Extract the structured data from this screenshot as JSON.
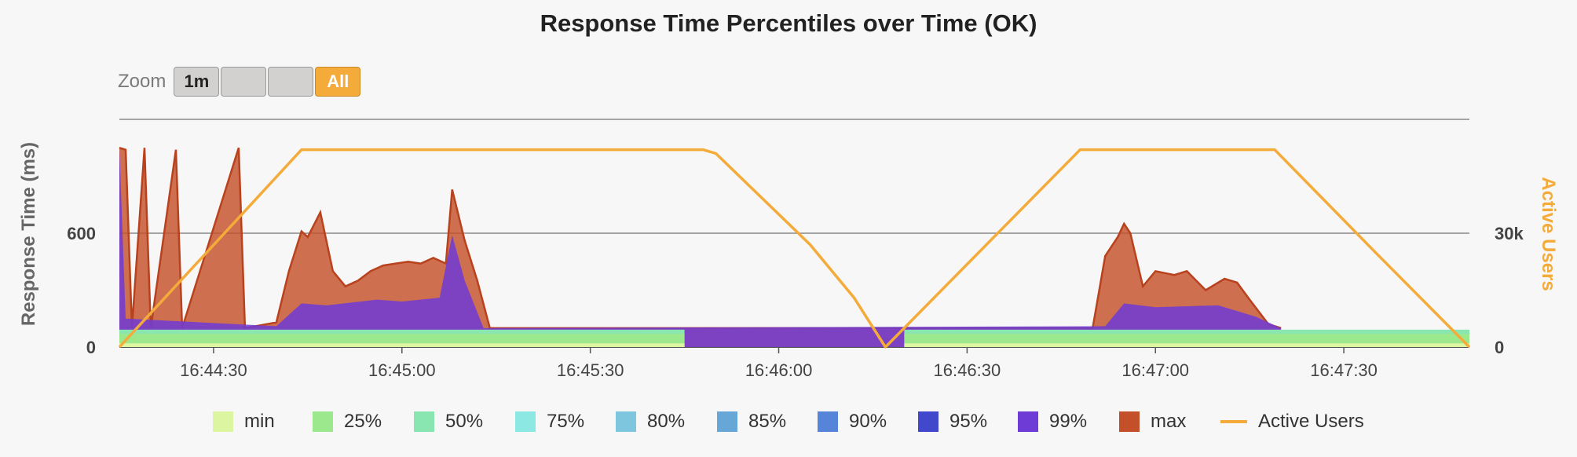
{
  "chart_data": {
    "type": "area",
    "title": "Response Time Percentiles over Time (OK)",
    "ylabel": "Response Time (ms)",
    "y2label": "Active Users",
    "yticks": [
      0,
      600
    ],
    "y2ticks": [
      "0",
      "30k"
    ],
    "ylim": [
      0,
      1200
    ],
    "y2lim": [
      0,
      60000
    ],
    "x_ticks": [
      "16:44:30",
      "16:45:00",
      "16:45:30",
      "16:46:00",
      "16:46:30",
      "16:47:00",
      "16:47:30"
    ],
    "legend_position": "bottom",
    "series": [
      {
        "name": "min",
        "color": "#dcf5a0"
      },
      {
        "name": "25%",
        "color": "#9ce98d"
      },
      {
        "name": "50%",
        "color": "#89e6b0"
      },
      {
        "name": "75%",
        "color": "#8ce8e3"
      },
      {
        "name": "80%",
        "color": "#7dc6dd"
      },
      {
        "name": "85%",
        "color": "#67a7d7"
      },
      {
        "name": "90%",
        "color": "#5584d8"
      },
      {
        "name": "95%",
        "color": "#4148cc"
      },
      {
        "name": "99%",
        "color": "#6f3bd6"
      },
      {
        "name": "max",
        "color": "#c4502a"
      },
      {
        "name": "Active Users",
        "color": "#f4ab3a"
      }
    ],
    "max_curve": [
      [
        "16:44:15",
        1050
      ],
      [
        "16:44:16",
        1040
      ],
      [
        "16:44:17",
        100
      ],
      [
        "16:44:19",
        1050
      ],
      [
        "16:44:20",
        100
      ],
      [
        "16:44:24",
        1040
      ],
      [
        "16:44:25",
        100
      ],
      [
        "16:44:34",
        1050
      ],
      [
        "16:44:35",
        100
      ],
      [
        "16:44:40",
        130
      ],
      [
        "16:44:42",
        400
      ],
      [
        "16:44:44",
        610
      ],
      [
        "16:44:45",
        580
      ],
      [
        "16:44:47",
        710
      ],
      [
        "16:44:49",
        400
      ],
      [
        "16:44:51",
        320
      ],
      [
        "16:44:53",
        350
      ],
      [
        "16:44:55",
        400
      ],
      [
        "16:44:57",
        430
      ],
      [
        "16:44:59",
        440
      ],
      [
        "16:45:01",
        450
      ],
      [
        "16:45:03",
        440
      ],
      [
        "16:45:05",
        470
      ],
      [
        "16:45:07",
        440
      ],
      [
        "16:45:08",
        830
      ],
      [
        "16:45:10",
        560
      ],
      [
        "16:45:12",
        350
      ],
      [
        "16:45:14",
        100
      ],
      [
        "16:45:20",
        100
      ],
      [
        "16:46:50",
        100
      ],
      [
        "16:46:52",
        480
      ],
      [
        "16:46:54",
        580
      ],
      [
        "16:46:55",
        650
      ],
      [
        "16:46:56",
        600
      ],
      [
        "16:46:58",
        320
      ],
      [
        "16:47:00",
        400
      ],
      [
        "16:47:03",
        380
      ],
      [
        "16:47:05",
        400
      ],
      [
        "16:47:08",
        300
      ],
      [
        "16:47:11",
        360
      ],
      [
        "16:47:13",
        340
      ],
      [
        "16:47:15",
        250
      ],
      [
        "16:47:18",
        120
      ],
      [
        "16:47:20",
        100
      ]
    ],
    "p99_curve": [
      [
        "16:44:15",
        1050
      ],
      [
        "16:44:16",
        150
      ],
      [
        "16:44:40",
        110
      ],
      [
        "16:44:44",
        230
      ],
      [
        "16:44:48",
        220
      ],
      [
        "16:44:56",
        250
      ],
      [
        "16:45:00",
        240
      ],
      [
        "16:45:06",
        260
      ],
      [
        "16:45:08",
        590
      ],
      [
        "16:45:10",
        350
      ],
      [
        "16:45:13",
        100
      ],
      [
        "16:46:52",
        110
      ],
      [
        "16:46:55",
        230
      ],
      [
        "16:47:00",
        210
      ],
      [
        "16:47:10",
        220
      ],
      [
        "16:47:16",
        160
      ],
      [
        "16:47:20",
        100
      ]
    ],
    "active_users": [
      [
        "16:44:15",
        0
      ],
      [
        "16:44:44",
        52000
      ],
      [
        "16:45:48",
        52000
      ],
      [
        "16:45:50",
        51000
      ],
      [
        "16:46:05",
        27000
      ],
      [
        "16:46:12",
        13000
      ],
      [
        "16:46:17",
        0
      ],
      [
        "16:46:48",
        52000
      ],
      [
        "16:47:19",
        52000
      ],
      [
        "16:47:35",
        25000
      ],
      [
        "16:47:50",
        0
      ]
    ]
  },
  "zoom": {
    "label": "Zoom",
    "buttons": [
      "1m",
      "",
      "",
      "All"
    ]
  }
}
